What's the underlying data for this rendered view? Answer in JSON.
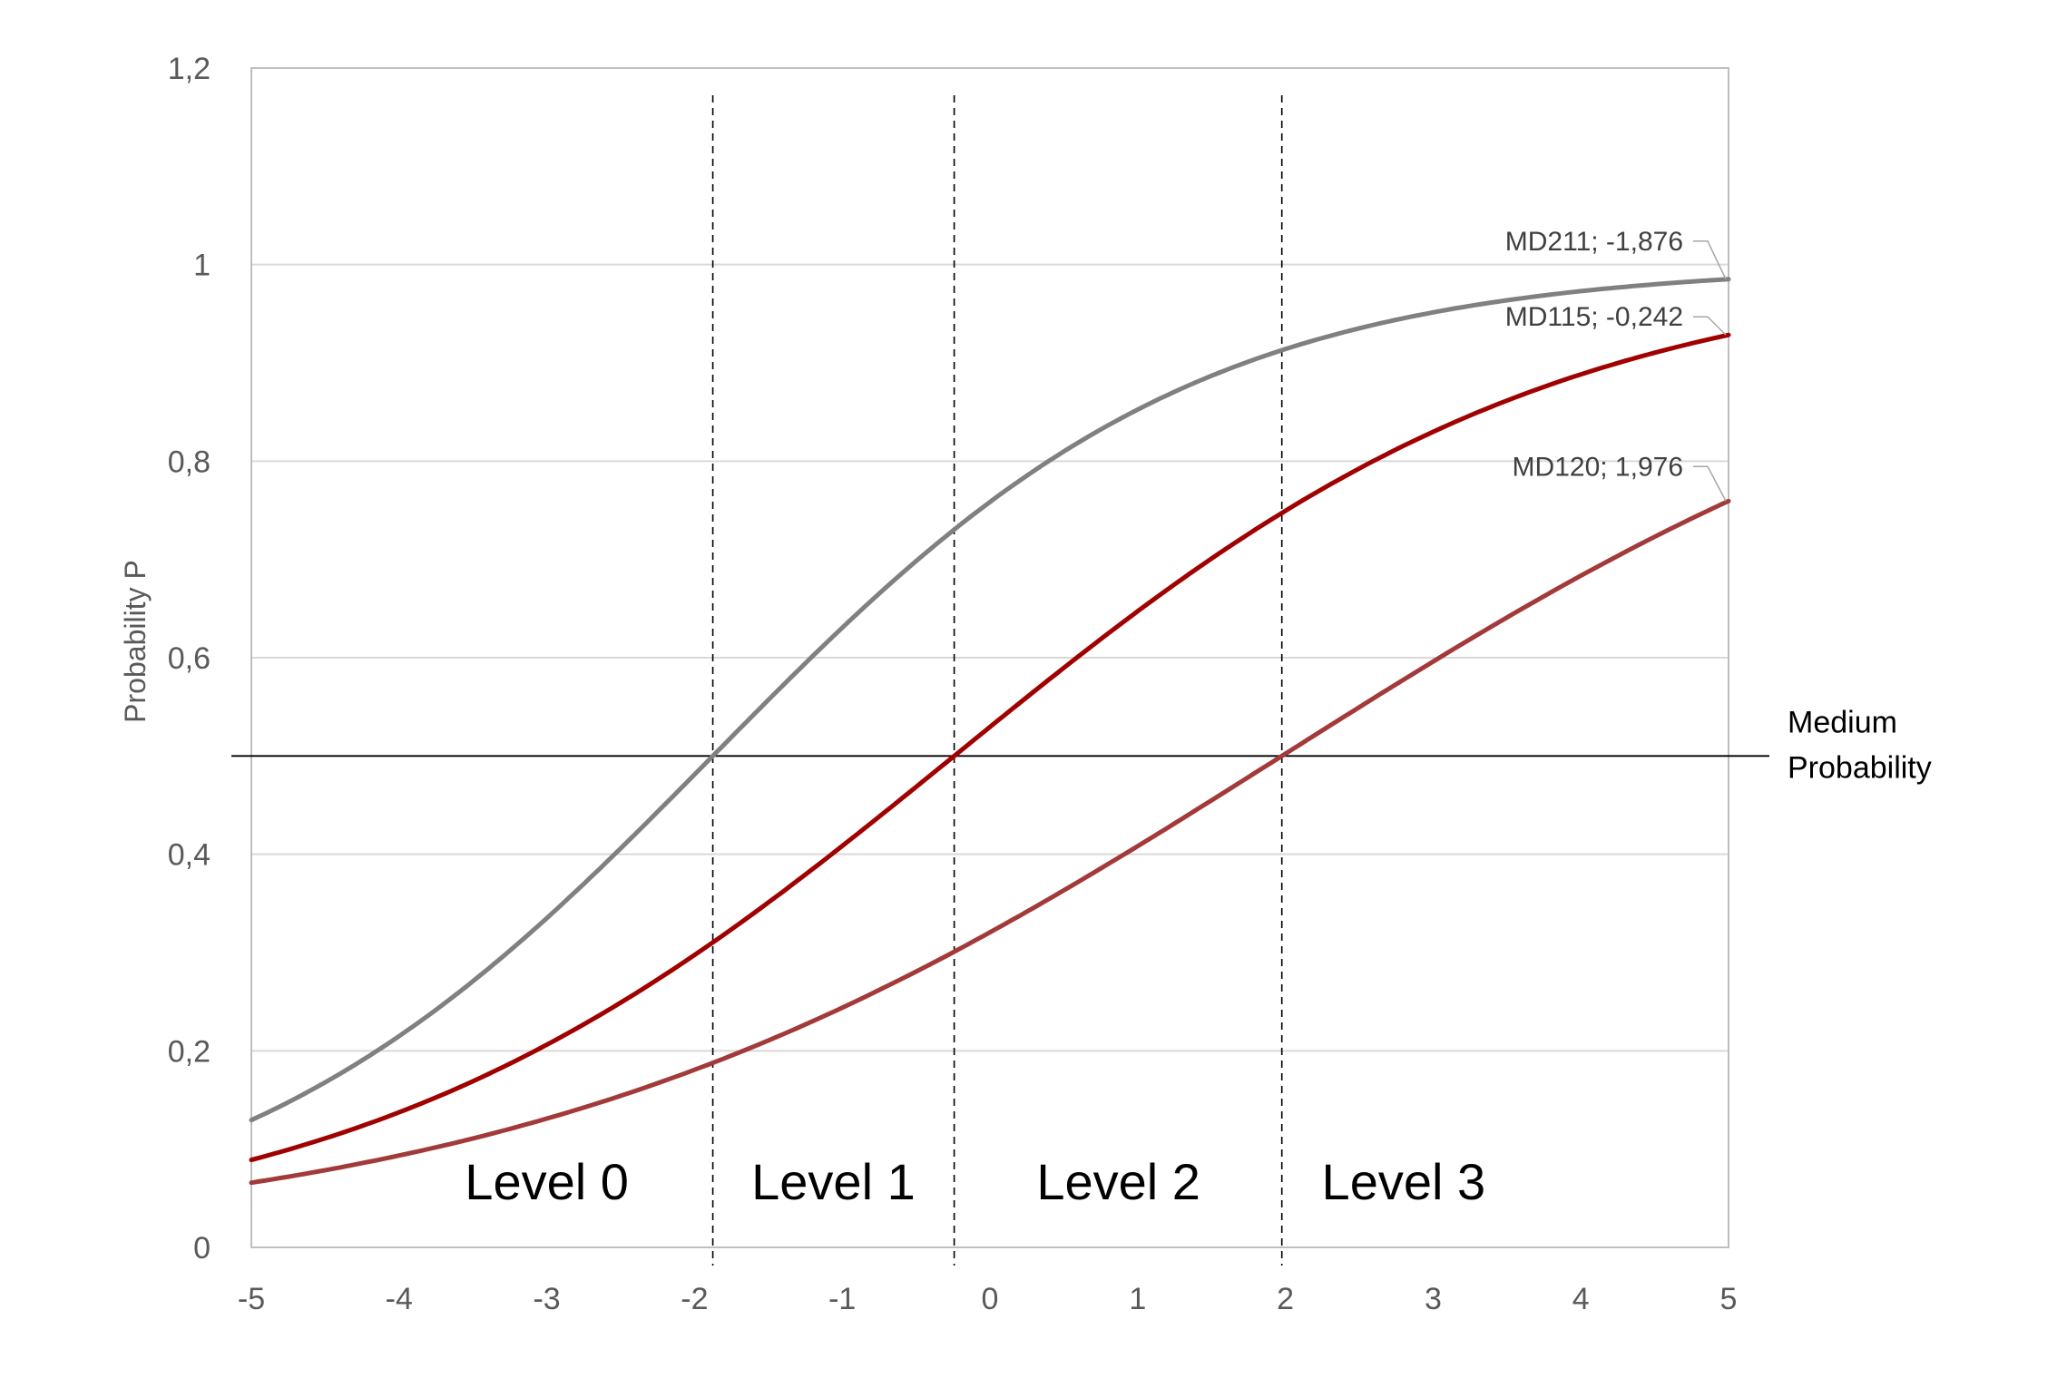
{
  "chart_data": {
    "type": "line",
    "title": "",
    "xlabel": "",
    "ylabel": "Probability P",
    "xlim": [
      -5,
      5
    ],
    "ylim": [
      0,
      1.2
    ],
    "x_ticks": [
      "-5",
      "-4",
      "-3",
      "-2",
      "-1",
      "0",
      "1",
      "2",
      "3",
      "4",
      "5"
    ],
    "y_ticks": [
      "0",
      "0,2",
      "0,4",
      "0,6",
      "0,8",
      "1",
      "1,2"
    ],
    "grid": "horizontal",
    "x": [
      -5,
      -4,
      -3,
      -2,
      -1,
      0,
      1,
      2,
      3,
      4,
      5
    ],
    "series": [
      {
        "name": "MD211",
        "label": "MD211; -1,876",
        "threshold": -1.876,
        "color": "#808080",
        "values": [
          0.13,
          0.21,
          0.33,
          0.48,
          0.63,
          0.75,
          0.85,
          0.91,
          0.95,
          0.975,
          0.985
        ]
      },
      {
        "name": "MD115",
        "label": "MD115; -0,242",
        "threshold": -0.242,
        "color": "#a00000",
        "values": [
          0.09,
          0.14,
          0.21,
          0.3,
          0.41,
          0.53,
          0.65,
          0.75,
          0.83,
          0.89,
          0.93
        ]
      },
      {
        "name": "MD120",
        "label": "MD120; 1,976",
        "threshold": 1.976,
        "color": "#a33a3a",
        "values": [
          0.07,
          0.09,
          0.13,
          0.18,
          0.24,
          0.31,
          0.4,
          0.5,
          0.59,
          0.68,
          0.76
        ]
      }
    ],
    "reference_line": {
      "y": 0.5,
      "label_line1": "Medium",
      "label_line2": "Probability"
    },
    "level_boundaries": [
      -1.876,
      -0.242,
      1.976
    ],
    "levels": [
      {
        "label": "Level 0",
        "x_center": -3.0
      },
      {
        "label": "Level 1",
        "x_center": -1.06
      },
      {
        "label": "Level 2",
        "x_center": 0.87
      },
      {
        "label": "Level 3",
        "x_center": 2.8
      }
    ]
  }
}
